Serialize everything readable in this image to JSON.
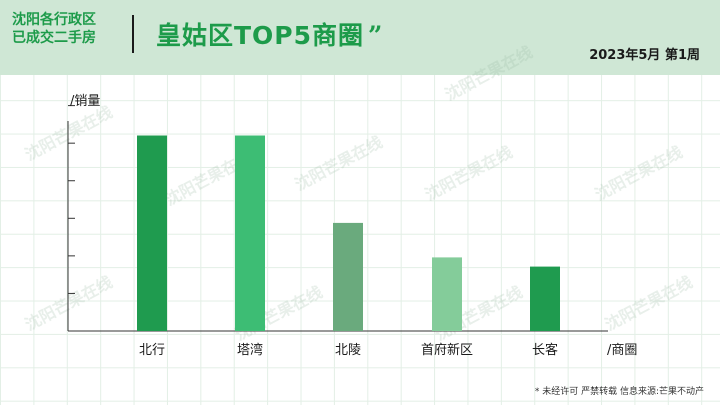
{
  "header": {
    "region_line1": "沈阳各行政区",
    "region_line2": "已成交二手房",
    "title": "皇姑区TOP5商圈",
    "title_quote": "”",
    "date": "2023年5月  第1周"
  },
  "watermark_text": "沈阳芒果在线",
  "footnote": "* 未经许可 严禁转载 信息来源:芒果不动产",
  "colors": {
    "header_bg": "#cfe7d5",
    "accent": "#1d9b4a"
  },
  "chart_data": {
    "type": "bar",
    "categories": [
      "北行",
      "塔湾",
      "北陵",
      "首府新区",
      "长客"
    ],
    "values": [
      85,
      85,
      47,
      32,
      28
    ],
    "bar_colors": [
      "#1f9b4f",
      "#3dbd74",
      "#6aaa7d",
      "#84cc9a",
      "#1f9b4f"
    ],
    "ylabel": "/销量",
    "xlabel": "/商圈",
    "ylim": [
      0,
      100
    ],
    "ytick_count": 6
  }
}
